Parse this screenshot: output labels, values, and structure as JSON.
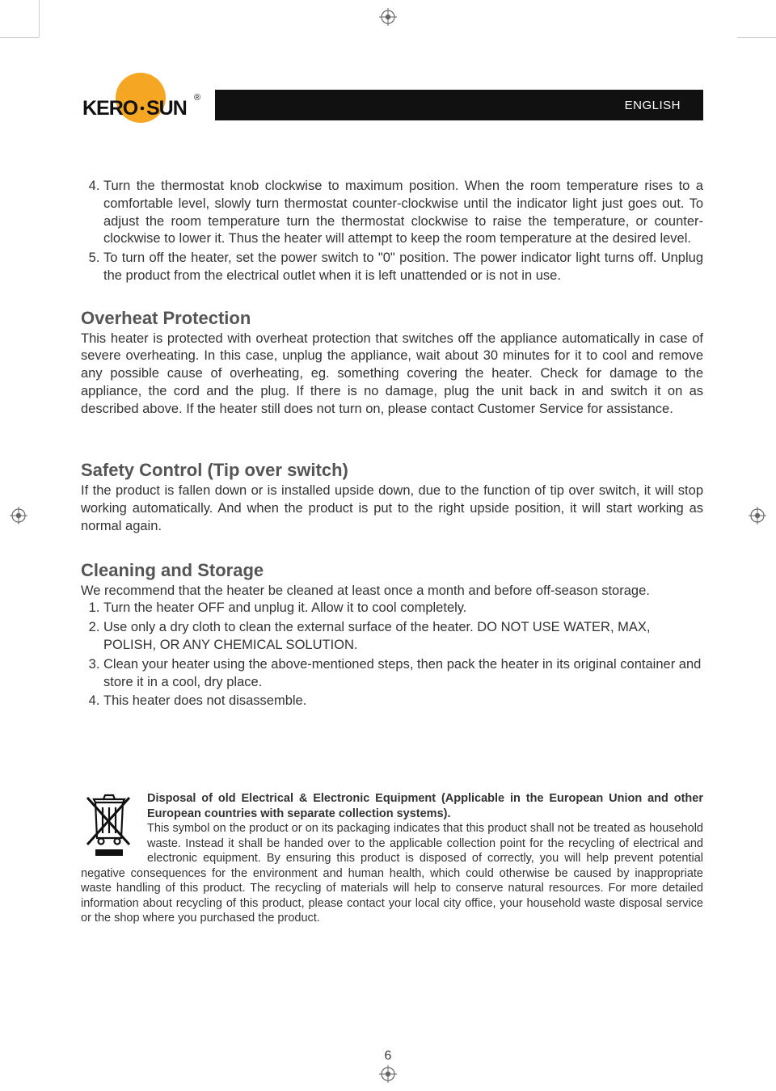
{
  "colors": {
    "logo_orange": "#f5a623",
    "bar_bg": "#111111",
    "bar_text": "#ffffff",
    "heading_gray": "#555555",
    "body_text": "#333333"
  },
  "header": {
    "brand": "KERO·SUN",
    "reg_mark": "®",
    "language_label": "ENGLISH"
  },
  "continued_list": {
    "start": 4,
    "items": [
      "Turn the thermostat knob clockwise to maximum position. When the room temperature rises to a comfortable level, slowly turn thermostat counter-clockwise until the indicator light just goes out. To adjust the room temperature turn the thermostat clockwise to raise the temperature, or counter-clockwise to lower it. Thus the heater will attempt to keep the room temperature at the desired level.",
      "To turn off the heater, set the power switch to \"0\" position. The power indicator light turns off. Unplug the product from the electrical outlet when it is left unattended or is not in use."
    ]
  },
  "sections": {
    "overheat": {
      "title": "Overheat Protection",
      "body": "This heater is protected with overheat protection that switches off the appliance automatically in case of severe overheating. In this case, unplug the appliance, wait about 30 minutes for it to cool and remove any possible cause of overheating, eg. something covering the heater. Check for damage to the appliance, the cord and the plug. If there is no damage, plug the unit back in and switch it on as described above. If the heater still does not turn on, please contact Customer Service for assistance."
    },
    "safety": {
      "title": "Safety Control (Tip over switch)",
      "body": "If the product is fallen down or is installed upside down, due to the function of tip over switch, it will stop working automatically. And when the product is put to the right upside position, it will start working as normal again."
    },
    "cleaning": {
      "title": "Cleaning and Storage",
      "intro": "We recommend that the heater be cleaned at least once a month and before off-season storage.",
      "items": [
        "Turn the heater OFF and unplug it. Allow it to cool completely.",
        "Use only a dry cloth to clean the external surface of the heater. DO NOT USE WATER, MAX, POLISH, OR ANY CHEMICAL SOLUTION.",
        "Clean your heater using the above-mentioned steps, then pack the heater in its original container and store it in a cool, dry place.",
        "This heater does not disassemble."
      ]
    }
  },
  "disposal": {
    "title": "Disposal of old Electrical & Electronic Equipment (Applicable in the European Union and other European countries with separate collection systems).",
    "body": "This symbol on the product or on its packaging indicates that this product shall not be treated as household waste. Instead it shall be handed over to the applicable collection point for the recycling of electrical and electronic equipment. By ensuring this product is disposed of correctly, you will help prevent potential negative consequences for the environment and human health, which could otherwise be caused by inappropriate waste handling of this product. The recycling of materials will help to conserve natural resources. For more detailed information about recycling of this product, please contact your local city office, your household waste disposal service or the shop where you purchased the product."
  },
  "page_number": "6"
}
